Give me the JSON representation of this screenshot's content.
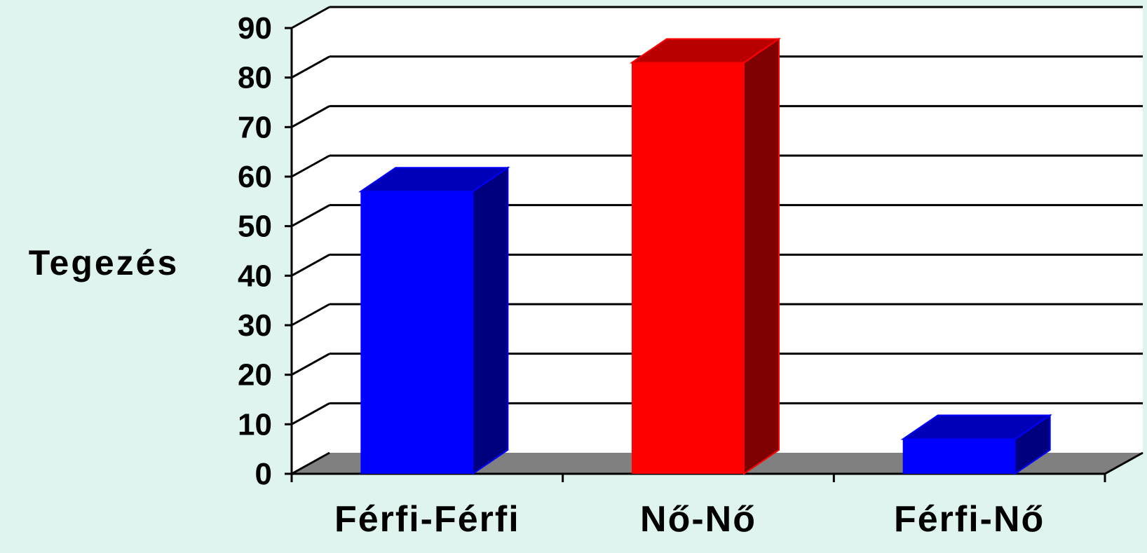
{
  "chart_data": {
    "type": "bar",
    "title": "",
    "xlabel": "",
    "ylabel": "Tegezés",
    "ylim": [
      0,
      90
    ],
    "yticks": [
      0,
      10,
      20,
      30,
      40,
      50,
      60,
      70,
      80,
      90
    ],
    "categories": [
      "Férfi-Férfi",
      "Nő-Nő",
      "Férfi-Nő"
    ],
    "values": [
      57,
      83,
      7
    ],
    "grid": true,
    "legend": "none",
    "colors": {
      "bars": [
        "#0000ff",
        "#ff0000",
        "#0000ff"
      ],
      "bars_side": [
        "#00007e",
        "#7e0000",
        "#00007e"
      ],
      "bars_top": [
        "#0000b8",
        "#b80000",
        "#0000b8"
      ],
      "floor": "#808080",
      "wall": "#ffffff",
      "background": "#dff4ef"
    }
  }
}
